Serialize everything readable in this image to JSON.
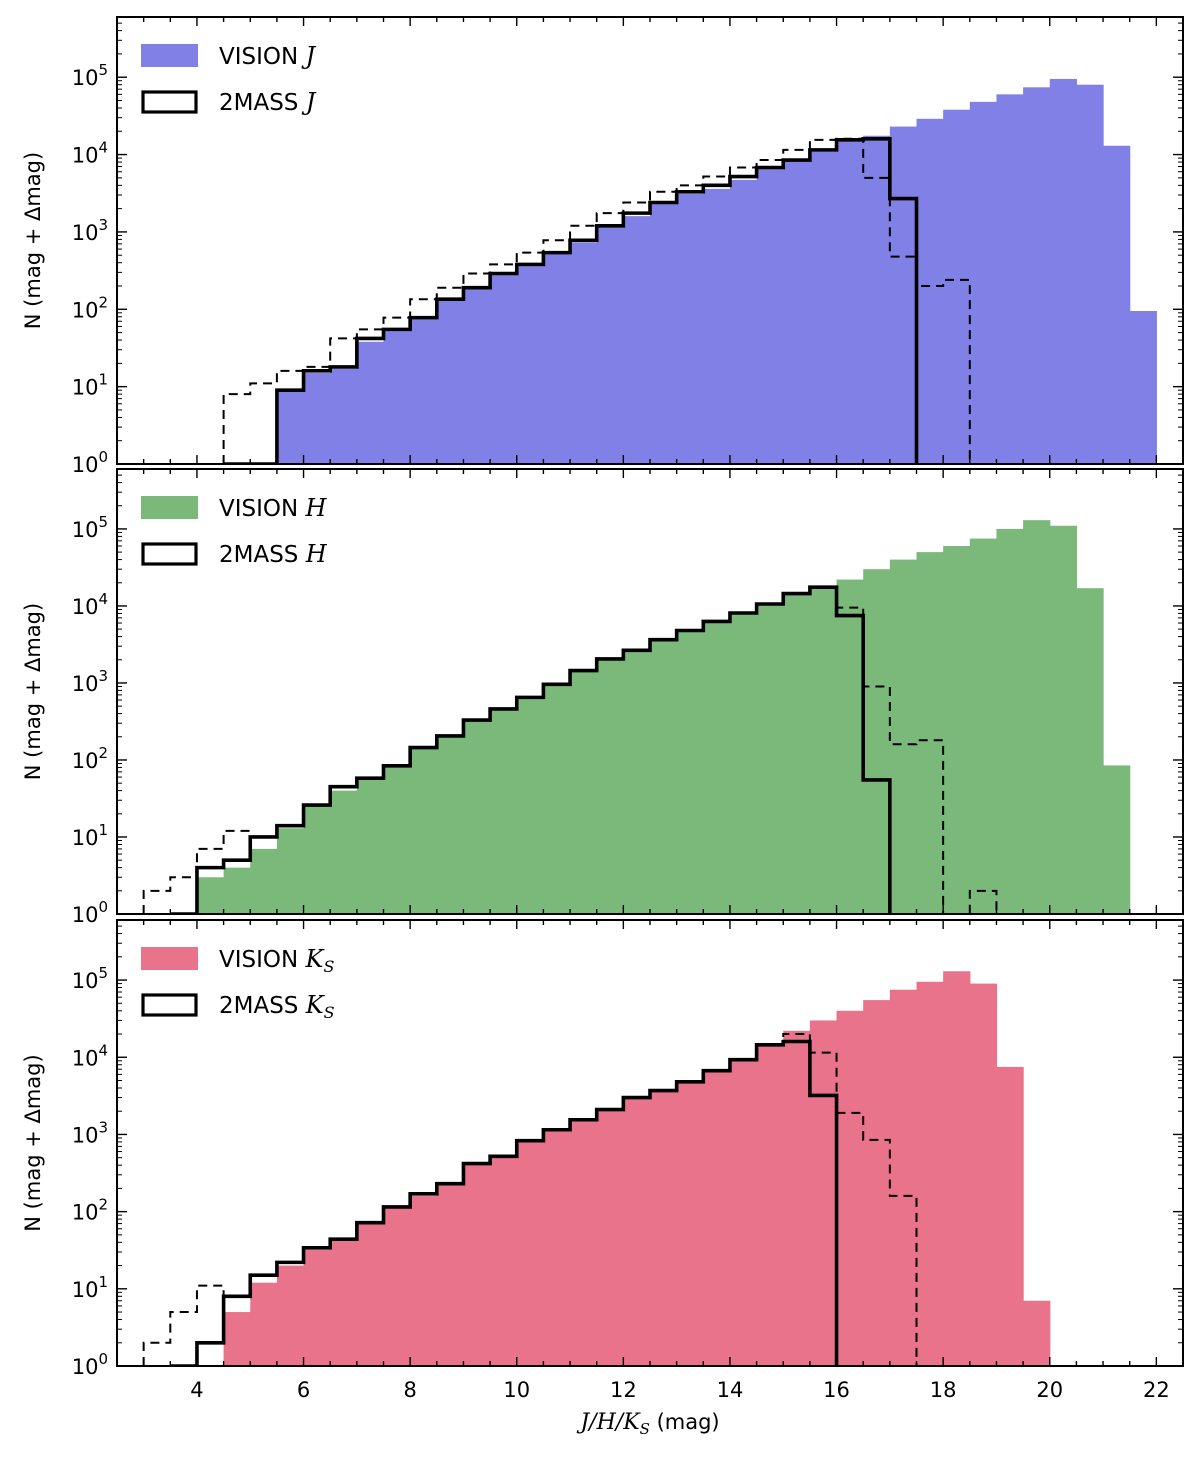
{
  "chart_data": [
    {
      "type": "histogram",
      "panel": "J",
      "ylabel": "N (mag + Δmag)",
      "yscale": "log",
      "ylim": [
        1,
        600000
      ],
      "xlim": [
        2.5,
        22.5
      ],
      "bin_width": 0.5,
      "yticks": [
        {
          "base": "10",
          "exp": "0"
        },
        {
          "base": "10",
          "exp": "1"
        },
        {
          "base": "10",
          "exp": "2"
        },
        {
          "base": "10",
          "exp": "3"
        },
        {
          "base": "10",
          "exp": "4"
        },
        {
          "base": "10",
          "exp": "5"
        }
      ],
      "legend": [
        {
          "label": "VISION ",
          "band": "J",
          "style": "filled",
          "color": "#8080e6"
        },
        {
          "label": "2MASS ",
          "band": "J",
          "style": "step",
          "color": "#000000"
        }
      ],
      "series": [
        {
          "name": "VISION J",
          "style": "filled",
          "color": "#8080e6",
          "start": 5.5,
          "values": [
            9,
            15,
            17,
            38,
            53,
            75,
            130,
            180,
            280,
            360,
            520,
            730,
            1150,
            1600,
            2300,
            3100,
            3600,
            4700,
            6400,
            8200,
            11500,
            15500,
            17500,
            23000,
            29000,
            38000,
            48000,
            60000,
            74000,
            95000,
            80000,
            13000,
            95
          ]
        },
        {
          "name": "2MASS J",
          "style": "step-solid",
          "color": "#000000",
          "start": 4.5,
          "values": [
            1,
            1,
            9,
            16,
            18,
            42,
            55,
            78,
            135,
            190,
            290,
            380,
            540,
            780,
            1200,
            1750,
            2400,
            3300,
            4000,
            5200,
            6800,
            8500,
            11500,
            15500,
            16000,
            2700
          ]
        },
        {
          "name": "2MASS J (dashed)",
          "style": "step-dashed",
          "color": "#000000",
          "start": 4.5,
          "values": [
            8,
            11,
            16,
            18,
            42,
            55,
            78,
            135,
            190,
            290,
            380,
            540,
            780,
            1200,
            1750,
            2400,
            3300,
            4000,
            5200,
            6800,
            8500,
            11500,
            15500,
            16000,
            5000,
            480,
            200,
            240
          ]
        }
      ]
    },
    {
      "type": "histogram",
      "panel": "H",
      "ylabel": "N (mag + Δmag)",
      "yscale": "log",
      "ylim": [
        1,
        600000
      ],
      "xlim": [
        2.5,
        22.5
      ],
      "bin_width": 0.5,
      "yticks": [
        {
          "base": "10",
          "exp": "0"
        },
        {
          "base": "10",
          "exp": "1"
        },
        {
          "base": "10",
          "exp": "2"
        },
        {
          "base": "10",
          "exp": "3"
        },
        {
          "base": "10",
          "exp": "4"
        },
        {
          "base": "10",
          "exp": "5"
        }
      ],
      "legend": [
        {
          "label": "VISION ",
          "band": "H",
          "style": "filled",
          "color": "#7bb97b"
        },
        {
          "label": "2MASS ",
          "band": "H",
          "style": "step",
          "color": "#000000"
        }
      ],
      "series": [
        {
          "name": "VISION H",
          "style": "filled",
          "color": "#7bb97b",
          "start": 4.0,
          "values": [
            3,
            4,
            7,
            13,
            26,
            40,
            56,
            80,
            140,
            200,
            320,
            450,
            640,
            940,
            1400,
            2000,
            2600,
            3600,
            4700,
            6200,
            8000,
            10500,
            14000,
            17000,
            22000,
            30000,
            40000,
            50000,
            60000,
            75000,
            100000,
            130000,
            110000,
            17000,
            85
          ]
        },
        {
          "name": "2MASS H",
          "style": "step-solid",
          "color": "#000000",
          "start": 3.5,
          "values": [
            1,
            4,
            5,
            10,
            14,
            26,
            45,
            58,
            84,
            145,
            205,
            330,
            460,
            650,
            960,
            1450,
            2050,
            2650,
            3650,
            4800,
            6300,
            8100,
            10600,
            14500,
            17500,
            7500,
            55
          ]
        },
        {
          "name": "2MASS H (dashed)",
          "style": "step-dashed",
          "color": "#000000",
          "start": 3.0,
          "values": [
            2,
            3,
            7,
            12,
            10,
            14,
            26,
            45,
            58,
            84,
            145,
            205,
            330,
            460,
            650,
            960,
            1450,
            2050,
            2650,
            3650,
            4800,
            6300,
            8100,
            10600,
            14500,
            17500,
            9500,
            900,
            160,
            180,
            1,
            2
          ]
        }
      ]
    },
    {
      "type": "histogram",
      "panel": "Ks",
      "ylabel": "N (mag + Δmag)",
      "xlabel": " (mag)",
      "xlabel_math": "J/H/K",
      "xlabel_sub": "S",
      "yscale": "log",
      "ylim": [
        1,
        600000
      ],
      "xlim": [
        2.5,
        22.5
      ],
      "bin_width": 0.5,
      "xticks": [
        "4",
        "6",
        "8",
        "10",
        "12",
        "14",
        "16",
        "18",
        "20",
        "22"
      ],
      "yticks": [
        {
          "base": "10",
          "exp": "0"
        },
        {
          "base": "10",
          "exp": "1"
        },
        {
          "base": "10",
          "exp": "2"
        },
        {
          "base": "10",
          "exp": "3"
        },
        {
          "base": "10",
          "exp": "4"
        },
        {
          "base": "10",
          "exp": "5"
        }
      ],
      "legend": [
        {
          "label": "VISION ",
          "band": "K",
          "sub": "S",
          "style": "filled",
          "color": "#e8738a"
        },
        {
          "label": "2MASS ",
          "band": "K",
          "sub": "S",
          "style": "step",
          "color": "#000000"
        }
      ],
      "series": [
        {
          "name": "VISION Ks",
          "style": "filled",
          "color": "#e8738a",
          "start": 4.0,
          "values": [
            1,
            5,
            12,
            20,
            32,
            42,
            68,
            110,
            160,
            220,
            400,
            500,
            800,
            1100,
            1500,
            2000,
            2900,
            3600,
            4700,
            6500,
            9000,
            14000,
            22000,
            30000,
            40000,
            55000,
            75000,
            95000,
            130000,
            90000,
            7500,
            7
          ]
        },
        {
          "name": "2MASS Ks",
          "style": "step-solid",
          "color": "#000000",
          "start": 3.5,
          "values": [
            1,
            2,
            8,
            15,
            22,
            34,
            44,
            72,
            115,
            170,
            230,
            420,
            520,
            830,
            1150,
            1550,
            2100,
            3000,
            3700,
            4800,
            6700,
            9300,
            14500,
            16000,
            3200
          ]
        },
        {
          "name": "2MASS Ks (dashed)",
          "style": "step-dashed",
          "color": "#000000",
          "start": 3.0,
          "values": [
            2,
            5,
            11,
            8,
            15,
            22,
            34,
            44,
            72,
            115,
            170,
            230,
            420,
            520,
            830,
            1150,
            1550,
            2100,
            3000,
            3700,
            4800,
            6700,
            9300,
            14500,
            20000,
            11500,
            1900,
            850,
            160
          ]
        }
      ]
    }
  ]
}
